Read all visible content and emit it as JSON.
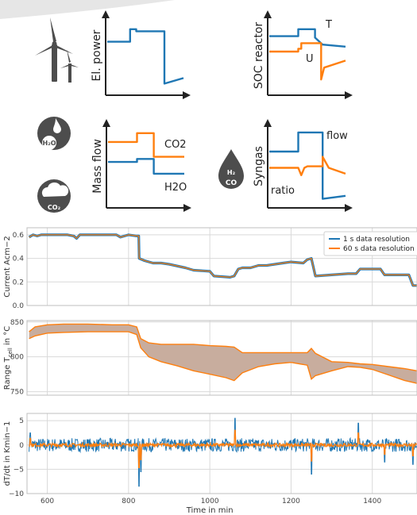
{
  "colors": {
    "blue": "#1f77b4",
    "orange": "#ff7f0e",
    "band": "#c8ad9e",
    "grid": "#d9d9d9",
    "axis": "#222222",
    "icon": "#4d4d4d"
  },
  "icons": [
    "wind-turbine-icon",
    "water-drop-icon",
    "co2-cloud-icon",
    "syngas-drop-icon"
  ],
  "schematics": [
    {
      "ylabel": "El. power",
      "series": [
        {
          "color": "blue",
          "x": [
            0,
            30,
            30,
            38,
            38,
            75,
            75,
            100
          ],
          "y": [
            0.72,
            0.72,
            0.9,
            0.9,
            0.87,
            0.87,
            0.12,
            0.2
          ]
        }
      ],
      "labels": []
    },
    {
      "ylabel": "SOC reactor",
      "series": [
        {
          "color": "blue",
          "x": [
            0,
            38,
            38,
            60,
            60,
            70,
            100
          ],
          "y": [
            0.8,
            0.8,
            0.9,
            0.9,
            0.78,
            0.68,
            0.65
          ]
        },
        {
          "color": "orange",
          "x": [
            0,
            38,
            38,
            42,
            42,
            68,
            68,
            72,
            100
          ],
          "y": [
            0.58,
            0.58,
            0.62,
            0.62,
            0.7,
            0.7,
            0.18,
            0.35,
            0.45
          ]
        }
      ],
      "labels": [
        {
          "text": "T",
          "color": "axis"
        },
        {
          "text": "U",
          "color": "axis"
        }
      ]
    },
    {
      "ylabel": "Mass flow",
      "series": [
        {
          "color": "orange",
          "x": [
            0,
            38,
            38,
            60,
            60,
            100
          ],
          "y": [
            0.85,
            0.85,
            0.97,
            0.97,
            0.65,
            0.65
          ]
        },
        {
          "color": "blue",
          "x": [
            0,
            38,
            38,
            60,
            60,
            100
          ],
          "y": [
            0.58,
            0.58,
            0.62,
            0.62,
            0.42,
            0.42
          ]
        }
      ],
      "labels": [
        {
          "text": "CO2",
          "color": "axis"
        },
        {
          "text": "H2O",
          "color": "axis"
        }
      ]
    },
    {
      "ylabel": "Syngas",
      "series": [
        {
          "color": "blue",
          "x": [
            0,
            38,
            38,
            70,
            70,
            100
          ],
          "y": [
            0.72,
            0.72,
            0.98,
            0.98,
            0.08,
            0.12
          ]
        },
        {
          "color": "orange",
          "x": [
            0,
            38,
            42,
            46,
            50,
            70,
            70,
            78,
            100
          ],
          "y": [
            0.5,
            0.5,
            0.4,
            0.5,
            0.52,
            0.52,
            0.65,
            0.5,
            0.42
          ]
        }
      ],
      "labels": [
        {
          "text": "flow",
          "color": "axis"
        },
        {
          "text": "ratio",
          "color": "axis"
        }
      ]
    }
  ],
  "chart_data": [
    {
      "type": "line",
      "ylabel": "Current Acm−2",
      "xlim": [
        550,
        1510
      ],
      "ylim": [
        0.0,
        0.66
      ],
      "yticks": [
        "0.0",
        "0.2",
        "0.4",
        "0.6"
      ],
      "ytick_values": [
        0.0,
        0.2,
        0.4,
        0.6
      ],
      "grid": true,
      "legend": {
        "position": "top-right",
        "entries": [
          "1 s data resolution",
          "60 s data resolution"
        ]
      },
      "series": [
        {
          "name": "1 s data resolution",
          "color": "blue",
          "x": [
            555,
            565,
            575,
            585,
            600,
            620,
            650,
            665,
            672,
            680,
            700,
            720,
            750,
            770,
            780,
            800,
            820,
            825,
            826,
            840,
            860,
            880,
            900,
            940,
            960,
            1000,
            1010,
            1050,
            1060,
            1070,
            1080,
            1100,
            1120,
            1140,
            1160,
            1180,
            1200,
            1230,
            1240,
            1250,
            1260,
            1300,
            1340,
            1360,
            1370,
            1420,
            1430,
            1490,
            1500,
            1510
          ],
          "y": [
            0.58,
            0.6,
            0.59,
            0.6,
            0.6,
            0.6,
            0.6,
            0.59,
            0.57,
            0.6,
            0.6,
            0.6,
            0.6,
            0.6,
            0.58,
            0.6,
            0.59,
            0.59,
            0.4,
            0.38,
            0.36,
            0.36,
            0.35,
            0.32,
            0.3,
            0.29,
            0.25,
            0.24,
            0.25,
            0.31,
            0.32,
            0.32,
            0.34,
            0.34,
            0.35,
            0.36,
            0.37,
            0.36,
            0.39,
            0.4,
            0.25,
            0.26,
            0.27,
            0.27,
            0.31,
            0.31,
            0.26,
            0.26,
            0.17,
            0.17
          ]
        },
        {
          "name": "60 s data resolution",
          "color": "orange",
          "x": [
            555,
            565,
            575,
            585,
            600,
            620,
            650,
            665,
            672,
            680,
            700,
            720,
            750,
            770,
            780,
            800,
            820,
            825,
            826,
            840,
            860,
            880,
            900,
            940,
            960,
            1000,
            1010,
            1050,
            1060,
            1070,
            1080,
            1100,
            1120,
            1140,
            1160,
            1180,
            1200,
            1230,
            1240,
            1250,
            1260,
            1300,
            1340,
            1360,
            1370,
            1420,
            1430,
            1490,
            1500,
            1510
          ],
          "y": [
            0.58,
            0.6,
            0.59,
            0.6,
            0.6,
            0.6,
            0.6,
            0.59,
            0.57,
            0.6,
            0.6,
            0.6,
            0.6,
            0.6,
            0.58,
            0.6,
            0.59,
            0.59,
            0.4,
            0.38,
            0.36,
            0.36,
            0.35,
            0.32,
            0.3,
            0.29,
            0.25,
            0.24,
            0.25,
            0.31,
            0.32,
            0.32,
            0.34,
            0.34,
            0.35,
            0.36,
            0.37,
            0.36,
            0.39,
            0.4,
            0.25,
            0.26,
            0.27,
            0.27,
            0.31,
            0.31,
            0.26,
            0.26,
            0.17,
            0.17
          ]
        }
      ]
    },
    {
      "type": "area",
      "ylabel": "Range T",
      "ylabel_sub": "cell",
      "ylabel_rest": " in °C",
      "xlim": [
        550,
        1510
      ],
      "ylim": [
        745,
        852
      ],
      "yticks": [
        "750",
        "800",
        "850"
      ],
      "ytick_values": [
        750,
        800,
        850
      ],
      "grid": true,
      "x": [
        555,
        570,
        600,
        640,
        700,
        760,
        800,
        820,
        830,
        850,
        880,
        920,
        960,
        1000,
        1040,
        1060,
        1080,
        1120,
        1160,
        1200,
        1240,
        1250,
        1260,
        1300,
        1340,
        1370,
        1400,
        1440,
        1480,
        1510
      ],
      "upper": [
        836,
        843,
        846,
        847,
        847,
        846,
        846,
        843,
        826,
        820,
        818,
        818,
        818,
        816,
        815,
        814,
        806,
        806,
        806,
        806,
        806,
        812,
        805,
        793,
        792,
        790,
        789,
        786,
        783,
        780
      ],
      "lower": [
        826,
        830,
        834,
        835,
        836,
        836,
        836,
        832,
        813,
        800,
        793,
        787,
        780,
        775,
        770,
        766,
        777,
        786,
        790,
        792,
        788,
        768,
        773,
        780,
        786,
        785,
        782,
        774,
        766,
        762
      ]
    },
    {
      "type": "line",
      "ylabel": "dT/dt in Kmin−1",
      "xlabel": "Time in min",
      "xlim": [
        550,
        1510
      ],
      "ylim": [
        -10,
        6.5
      ],
      "yticks": [
        "−10",
        "−5",
        "0",
        "5"
      ],
      "ytick_values": [
        -10,
        -5,
        0,
        5
      ],
      "xticks": [
        "600",
        "800",
        "1000",
        "1200",
        "1400"
      ],
      "xtick_values": [
        600,
        800,
        1000,
        1200,
        1400
      ],
      "grid": true,
      "spikes": [
        {
          "x": 558,
          "y": 2.5
        },
        {
          "x": 826,
          "y": -8.5
        },
        {
          "x": 830,
          "y": -5.5
        },
        {
          "x": 1062,
          "y": 5.5
        },
        {
          "x": 1250,
          "y": -6
        },
        {
          "x": 1366,
          "y": 4.5
        },
        {
          "x": 1430,
          "y": -3.5
        },
        {
          "x": 1500,
          "y": -4
        }
      ],
      "series": [
        {
          "name": "1 s data resolution",
          "color": "blue",
          "noise": 1.4
        },
        {
          "name": "60 s data resolution",
          "color": "orange",
          "noise": 0.35
        }
      ]
    }
  ]
}
